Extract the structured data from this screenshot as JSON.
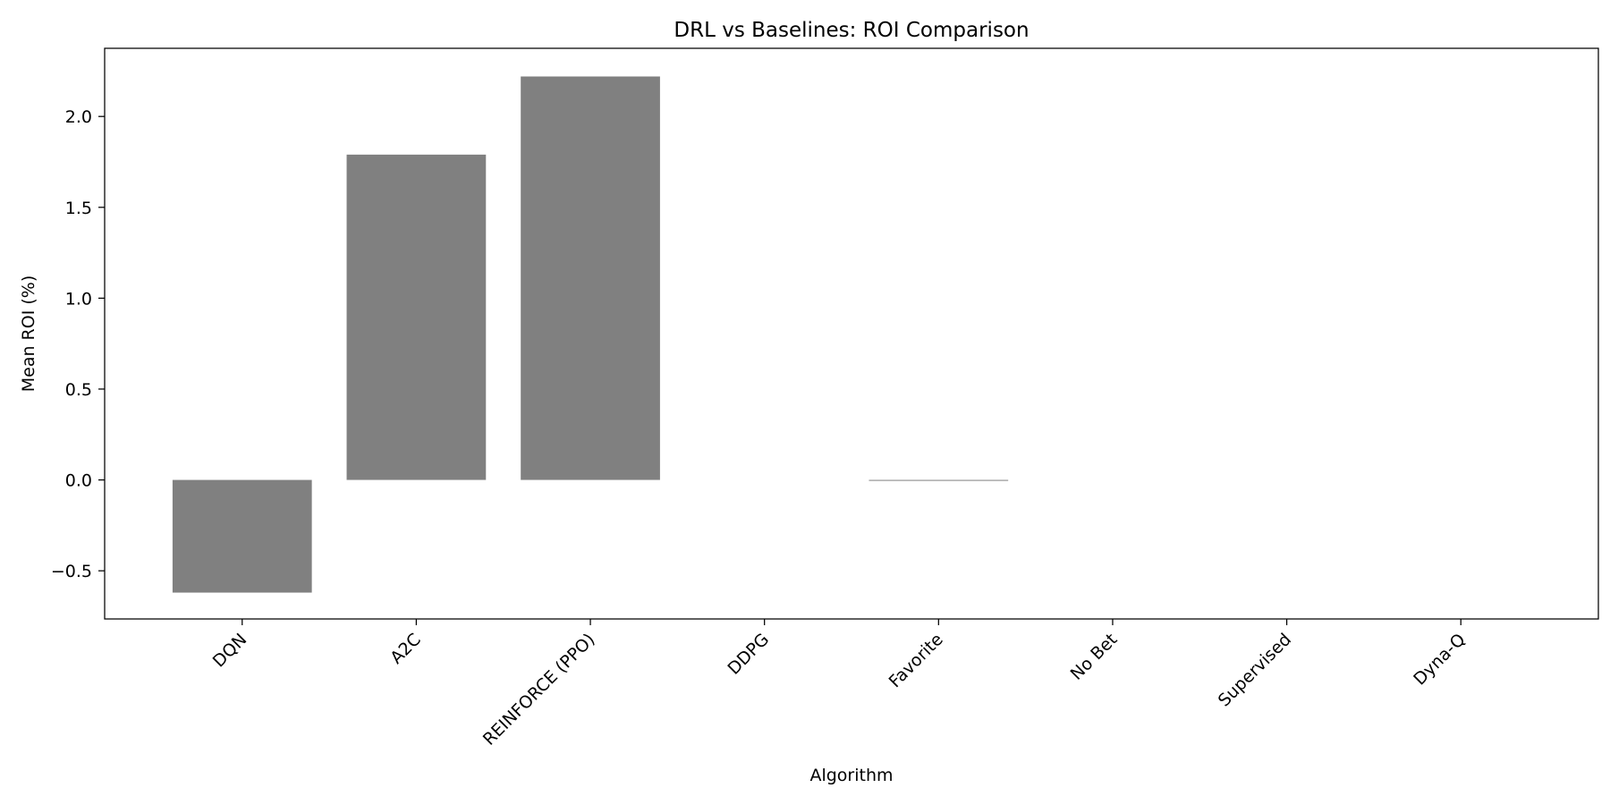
{
  "chart_data": {
    "type": "bar",
    "title": "DRL vs Baselines: ROI Comparison",
    "xlabel": "Algorithm",
    "ylabel": "Mean ROI (%)",
    "categories": [
      "DQN",
      "A2C",
      "REINFORCE (PPO)",
      "DDPG",
      "Favorite",
      "No Bet",
      "Supervised",
      "Dyna-Q"
    ],
    "values": [
      -0.62,
      1.79,
      2.22,
      0.0,
      -0.005,
      0.0,
      0.0,
      0.0
    ],
    "ylim": [
      -0.765,
      2.375
    ],
    "yticks": [
      -0.5,
      0.0,
      0.5,
      1.0,
      1.5,
      2.0
    ],
    "ytick_labels": [
      "−0.5",
      "0.0",
      "0.5",
      "1.0",
      "1.5",
      "2.0"
    ],
    "bar_color": "#808080",
    "grid": false,
    "legend": "none"
  }
}
